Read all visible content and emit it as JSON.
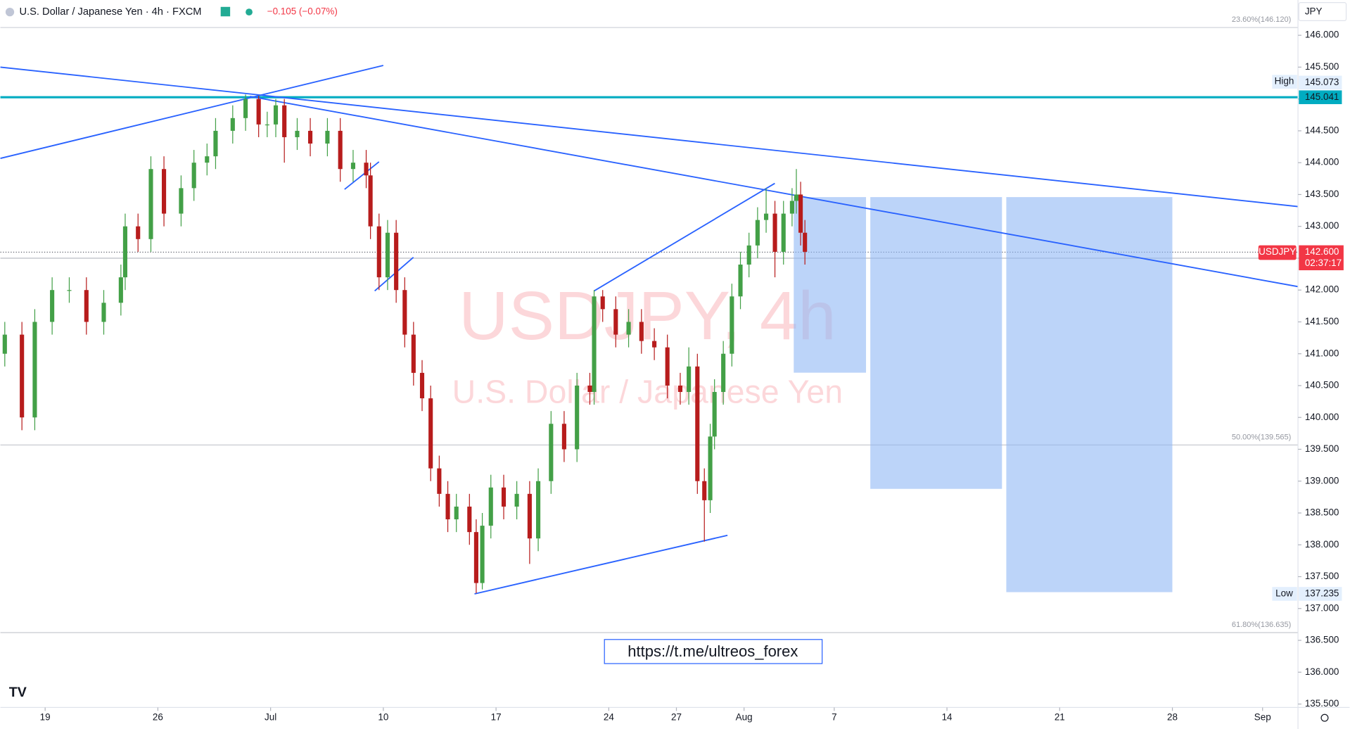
{
  "header": {
    "symbol": "U.S. Dollar / Japanese Yen · 4h · FXCM",
    "change": "−0.105 (−0.07%)",
    "currency": "JPY"
  },
  "watermark": {
    "title": "USDJPY, 4h",
    "subtitle": "U.S. Dollar / Japanese Yen"
  },
  "link": "https://t.me/ultreos_forex",
  "fib_labels": [
    "23.60%(146.120)",
    "50.00%(139.565)",
    "61.80%(136.635)"
  ],
  "price_labels": {
    "high_tag": "High",
    "high": "145.073",
    "level": "145.041",
    "symbol_tag": "USDJPY",
    "last": "142.600",
    "countdown": "02:37:17",
    "low_tag": "Low",
    "low": "137.235"
  },
  "chart_data": {
    "type": "candlestick",
    "up_color": "#43a047",
    "down_color": "#b71c1c",
    "xlim": [
      -1.985,
      55.57
    ],
    "ylim": [
      135.446,
      146.554
    ],
    "xticks": [
      {
        "value": 0,
        "label": "19"
      },
      {
        "value": 5,
        "label": "26"
      },
      {
        "value": 10,
        "label": "Jul"
      },
      {
        "value": 15,
        "label": "10"
      },
      {
        "value": 20,
        "label": "17"
      },
      {
        "value": 25,
        "label": "24"
      },
      {
        "value": 28,
        "label": "27"
      },
      {
        "value": 31,
        "label": "Aug"
      },
      {
        "value": 35,
        "label": "7"
      },
      {
        "value": 40,
        "label": "14"
      },
      {
        "value": 45,
        "label": "21"
      },
      {
        "value": 50,
        "label": "28"
      },
      {
        "value": 54,
        "label": "Sep"
      }
    ],
    "yticks": [
      {
        "value": 135.5,
        "label": "135.500"
      },
      {
        "value": 136,
        "label": "136.000"
      },
      {
        "value": 136.5,
        "label": "136.500"
      },
      {
        "value": 137,
        "label": "137.000"
      },
      {
        "value": 137.5,
        "label": "137.500"
      },
      {
        "value": 138,
        "label": "138.000"
      },
      {
        "value": 138.5,
        "label": "138.500"
      },
      {
        "value": 139,
        "label": "139.000"
      },
      {
        "value": 139.5,
        "label": "139.500"
      },
      {
        "value": 140,
        "label": "140.000"
      },
      {
        "value": 140.5,
        "label": "140.500"
      },
      {
        "value": 141,
        "label": "141.000"
      },
      {
        "value": 141.5,
        "label": "141.500"
      },
      {
        "value": 142,
        "label": "142.000"
      },
      {
        "value": 142.5,
        "label": "142.500"
      },
      {
        "value": 143,
        "label": "143.000"
      },
      {
        "value": 143.5,
        "label": "143.500"
      },
      {
        "value": 144,
        "label": "144.000"
      },
      {
        "value": 144.5,
        "label": "144.500"
      },
      {
        "value": 145,
        "label": "145.000"
      },
      {
        "value": 145.5,
        "label": "145.500"
      },
      {
        "value": 146,
        "label": "146.000"
      }
    ],
    "x": [
      -1.79,
      -1.03,
      -0.46,
      0.31,
      1.07,
      1.83,
      2.6,
      3.36,
      3.55,
      4.12,
      4.69,
      5.27,
      6.03,
      6.6,
      7.18,
      7.56,
      8.32,
      8.89,
      9.47,
      9.85,
      10.23,
      10.61,
      11.18,
      11.76,
      12.52,
      13.09,
      13.66,
      14.24,
      14.43,
      14.81,
      15.19,
      15.57,
      15.95,
      16.34,
      16.72,
      17.1,
      17.48,
      17.86,
      18.24,
      18.82,
      19.12,
      19.39,
      19.77,
      20.34,
      20.92,
      21.49,
      21.87,
      22.44,
      23.02,
      23.59,
      24.16,
      24.35,
      24.73,
      25.31,
      25.88,
      26.45,
      27.02,
      27.6,
      28.17,
      28.55,
      28.93,
      29.24,
      29.5,
      29.69,
      30.08,
      30.46,
      30.84,
      31.22,
      31.6,
      31.98,
      32.37,
      32.75,
      33.13,
      33.32,
      33.51,
      33.7
    ],
    "open": [
      141.0,
      141.3,
      140.0,
      141.5,
      142.0,
      142.0,
      141.5,
      141.8,
      142.2,
      143.0,
      142.8,
      143.9,
      143.2,
      143.6,
      144.0,
      144.1,
      144.5,
      144.7,
      145.0,
      144.6,
      144.6,
      144.9,
      144.4,
      144.5,
      144.3,
      144.5,
      143.9,
      144.0,
      143.8,
      143.0,
      142.2,
      142.9,
      142.0,
      141.3,
      140.7,
      140.3,
      139.2,
      138.8,
      138.4,
      138.6,
      138.2,
      137.4,
      138.3,
      138.9,
      138.6,
      138.8,
      138.1,
      139.0,
      139.9,
      139.5,
      140.5,
      140.4,
      141.9,
      141.7,
      141.3,
      141.5,
      141.2,
      141.1,
      140.5,
      140.4,
      140.8,
      139.0,
      138.7,
      139.7,
      140.4,
      141.0,
      141.9,
      142.4,
      142.7,
      143.1,
      143.2,
      142.6,
      143.2,
      143.4,
      143.5,
      142.9
    ],
    "high": [
      141.5,
      141.5,
      141.7,
      142.2,
      142.2,
      142.2,
      142.0,
      142.4,
      143.2,
      143.2,
      144.1,
      144.1,
      143.8,
      144.2,
      144.3,
      144.7,
      144.9,
      145.07,
      145.05,
      144.8,
      145.0,
      145.0,
      144.7,
      144.7,
      144.7,
      144.7,
      144.2,
      144.2,
      144.0,
      143.2,
      143.1,
      143.1,
      142.2,
      141.5,
      140.9,
      140.5,
      139.4,
      139.0,
      138.8,
      138.8,
      138.4,
      138.5,
      139.1,
      139.1,
      139.0,
      139.0,
      139.2,
      140.1,
      140.1,
      140.7,
      140.7,
      142.0,
      142.0,
      141.9,
      141.7,
      141.7,
      141.4,
      141.3,
      140.7,
      141.1,
      141.0,
      139.2,
      139.9,
      140.6,
      141.2,
      142.1,
      142.6,
      142.9,
      143.3,
      143.6,
      143.4,
      143.4,
      143.6,
      143.9,
      143.7,
      143.1
    ],
    "low": [
      140.8,
      139.8,
      139.8,
      141.3,
      141.8,
      141.3,
      141.3,
      141.6,
      142.0,
      142.6,
      142.6,
      143.0,
      143.0,
      143.4,
      143.8,
      143.9,
      144.3,
      144.5,
      144.4,
      144.4,
      144.4,
      144.0,
      144.2,
      144.1,
      144.1,
      143.7,
      143.7,
      143.6,
      142.8,
      142.0,
      142.0,
      141.8,
      141.1,
      140.5,
      140.1,
      139.0,
      138.6,
      138.2,
      138.2,
      138.0,
      137.24,
      137.3,
      138.1,
      138.4,
      138.4,
      137.7,
      137.9,
      138.8,
      139.3,
      139.3,
      140.2,
      140.2,
      141.5,
      141.1,
      141.1,
      141.0,
      140.9,
      140.3,
      140.2,
      140.2,
      138.8,
      138.05,
      138.5,
      139.5,
      140.2,
      140.8,
      141.7,
      142.2,
      142.5,
      142.9,
      142.2,
      142.4,
      143.0,
      143.2,
      142.7,
      142.4
    ],
    "close": [
      141.3,
      140.0,
      141.5,
      142.0,
      142.0,
      141.5,
      141.8,
      142.2,
      143.0,
      142.8,
      143.9,
      143.2,
      143.6,
      144.0,
      144.1,
      144.5,
      144.7,
      145.0,
      144.6,
      144.6,
      144.9,
      144.4,
      144.5,
      144.3,
      144.5,
      143.9,
      144.0,
      143.8,
      143.0,
      142.2,
      142.9,
      142.0,
      141.3,
      140.7,
      140.3,
      139.2,
      138.8,
      138.4,
      138.6,
      138.2,
      137.4,
      138.3,
      138.9,
      138.6,
      138.8,
      138.1,
      139.0,
      139.9,
      139.5,
      140.5,
      140.4,
      141.9,
      141.7,
      141.3,
      141.5,
      141.2,
      141.1,
      140.5,
      140.4,
      140.8,
      139.0,
      138.7,
      139.7,
      140.4,
      141.0,
      141.9,
      142.4,
      142.7,
      143.1,
      143.2,
      142.6,
      143.2,
      143.4,
      143.5,
      142.9,
      142.6
    ]
  }
}
